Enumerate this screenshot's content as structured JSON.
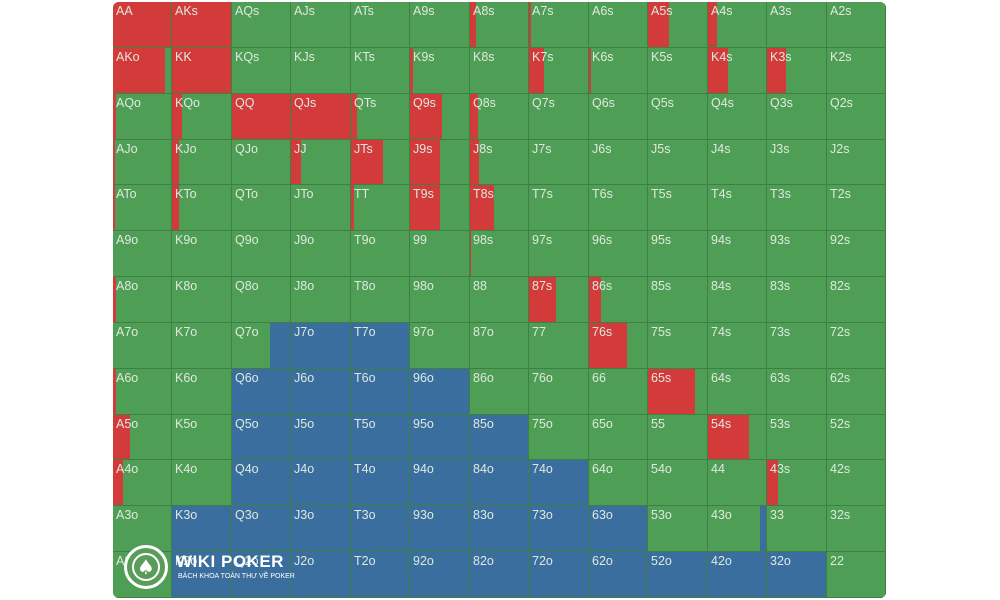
{
  "colors": {
    "fold": "#4f9e55",
    "raise": "#d33a3a",
    "call": "#3a6e9f",
    "text": "#dfe9df"
  },
  "grid": {
    "rows": [
      [
        "AA",
        "AKs",
        "AQs",
        "AJs",
        "ATs",
        "A9s",
        "A8s",
        "A7s",
        "A6s",
        "A5s",
        "A4s",
        "A3s",
        "A2s"
      ],
      [
        "AKo",
        "KK",
        "KQs",
        "KJs",
        "KTs",
        "K9s",
        "K8s",
        "K7s",
        "K6s",
        "K5s",
        "K4s",
        "K3s",
        "K2s"
      ],
      [
        "AQo",
        "KQo",
        "QQ",
        "QJs",
        "QTs",
        "Q9s",
        "Q8s",
        "Q7s",
        "Q6s",
        "Q5s",
        "Q4s",
        "Q3s",
        "Q2s"
      ],
      [
        "AJo",
        "KJo",
        "QJo",
        "JJ",
        "JTs",
        "J9s",
        "J8s",
        "J7s",
        "J6s",
        "J5s",
        "J4s",
        "J3s",
        "J2s"
      ],
      [
        "ATo",
        "KTo",
        "QTo",
        "JTo",
        "TT",
        "T9s",
        "T8s",
        "T7s",
        "T6s",
        "T5s",
        "T4s",
        "T3s",
        "T2s"
      ],
      [
        "A9o",
        "K9o",
        "Q9o",
        "J9o",
        "T9o",
        "99",
        "98s",
        "97s",
        "96s",
        "95s",
        "94s",
        "93s",
        "92s"
      ],
      [
        "A8o",
        "K8o",
        "Q8o",
        "J8o",
        "T8o",
        "98o",
        "88",
        "87s",
        "86s",
        "85s",
        "84s",
        "83s",
        "82s"
      ],
      [
        "A7o",
        "K7o",
        "Q7o",
        "J7o",
        "T7o",
        "97o",
        "87o",
        "77",
        "76s",
        "75s",
        "74s",
        "73s",
        "72s"
      ],
      [
        "A6o",
        "K6o",
        "Q6o",
        "J6o",
        "T6o",
        "96o",
        "86o",
        "76o",
        "66",
        "65s",
        "64s",
        "63s",
        "62s"
      ],
      [
        "A5o",
        "K5o",
        "Q5o",
        "J5o",
        "T5o",
        "95o",
        "85o",
        "75o",
        "65o",
        "55",
        "54s",
        "53s",
        "52s"
      ],
      [
        "A4o",
        "K4o",
        "Q4o",
        "J4o",
        "T4o",
        "94o",
        "84o",
        "74o",
        "64o",
        "54o",
        "44",
        "43s",
        "42s"
      ],
      [
        "A3o",
        "K3o",
        "Q3o",
        "J3o",
        "T3o",
        "93o",
        "83o",
        "73o",
        "63o",
        "53o",
        "43o",
        "33",
        "32s"
      ],
      [
        "A2o",
        "K2o",
        "Q2o",
        "J2o",
        "T2o",
        "92o",
        "82o",
        "72o",
        "62o",
        "52o",
        "42o",
        "32o",
        "22"
      ]
    ],
    "strategy": {
      "AA": {
        "r": 1
      },
      "AKs": {
        "r": 1
      },
      "A8s": {
        "r": 0.1
      },
      "A7s": {
        "r": 0.03
      },
      "A5s": {
        "r": 0.35
      },
      "A4s": {
        "r": 0.15
      },
      "AKo": {
        "r": 0.9
      },
      "KK": {
        "r": 1
      },
      "K9s": {
        "r": 0.05
      },
      "K7s": {
        "r": 0.25
      },
      "K6s": {
        "r": 0.04
      },
      "K4s": {
        "r": 0.35
      },
      "K3s": {
        "r": 0.32
      },
      "AQo": {
        "r": 0.05
      },
      "KQo": {
        "r": 0.17
      },
      "QQ": {
        "r": 1
      },
      "QJs": {
        "r": 1
      },
      "QTs": {
        "r": 0.1
      },
      "Q9s": {
        "r": 0.55
      },
      "Q8s": {
        "r": 0.13
      },
      "AJo": {
        "r": 0.04
      },
      "KJo": {
        "r": 0.12
      },
      "JJ": {
        "r": 0.17
      },
      "JTs": {
        "r": 0.55
      },
      "J9s": {
        "r": 0.5
      },
      "J8s": {
        "r": 0.15
      },
      "ATo": {
        "r": 0.04
      },
      "KTo": {
        "r": 0.12
      },
      "TT": {
        "r": 0.05
      },
      "T9s": {
        "r": 0.5
      },
      "T8s": {
        "r": 0.42
      },
      "98s": {
        "r": 0.02
      },
      "A8o": {
        "r": 0.05
      },
      "87s": {
        "r": 0.45
      },
      "86s": {
        "r": 0.2
      },
      "Q7o": {
        "c": 0.35
      },
      "J7o": {
        "c": 1
      },
      "T7o": {
        "c": 1
      },
      "76s": {
        "r": 0.65
      },
      "A6o": {
        "r": 0.05
      },
      "Q6o": {
        "c": 1
      },
      "J6o": {
        "c": 1
      },
      "T6o": {
        "c": 1
      },
      "96o": {
        "c": 1
      },
      "65s": {
        "r": 0.8
      },
      "A5o": {
        "r": 0.3
      },
      "Q5o": {
        "c": 1
      },
      "J5o": {
        "c": 1
      },
      "T5o": {
        "c": 1
      },
      "95o": {
        "c": 1
      },
      "85o": {
        "c": 1
      },
      "54s": {
        "r": 0.7
      },
      "A4o": {
        "r": 0.18
      },
      "Q4o": {
        "c": 1
      },
      "J4o": {
        "c": 1
      },
      "T4o": {
        "c": 1
      },
      "94o": {
        "c": 1
      },
      "84o": {
        "c": 1
      },
      "74o": {
        "c": 1
      },
      "43s": {
        "r": 0.18
      },
      "K3o": {
        "c": 1
      },
      "Q3o": {
        "c": 1
      },
      "J3o": {
        "c": 1
      },
      "T3o": {
        "c": 1
      },
      "93o": {
        "c": 1
      },
      "83o": {
        "c": 1
      },
      "73o": {
        "c": 1
      },
      "63o": {
        "c": 1
      },
      "43o": {
        "c": 0.1
      },
      "K2o": {
        "c": 1
      },
      "Q2o": {
        "c": 1
      },
      "J2o": {
        "c": 1
      },
      "T2o": {
        "c": 1
      },
      "92o": {
        "c": 1
      },
      "82o": {
        "c": 1
      },
      "72o": {
        "c": 1
      },
      "62o": {
        "c": 1
      },
      "52o": {
        "c": 1
      },
      "42o": {
        "c": 1
      },
      "32o": {
        "c": 1
      }
    }
  },
  "watermark": {
    "title": "WIKI POKER",
    "subtitle": "BÁCH KHOA TOÀN THƯ VỀ POKER",
    "icon": "spade-icon"
  }
}
